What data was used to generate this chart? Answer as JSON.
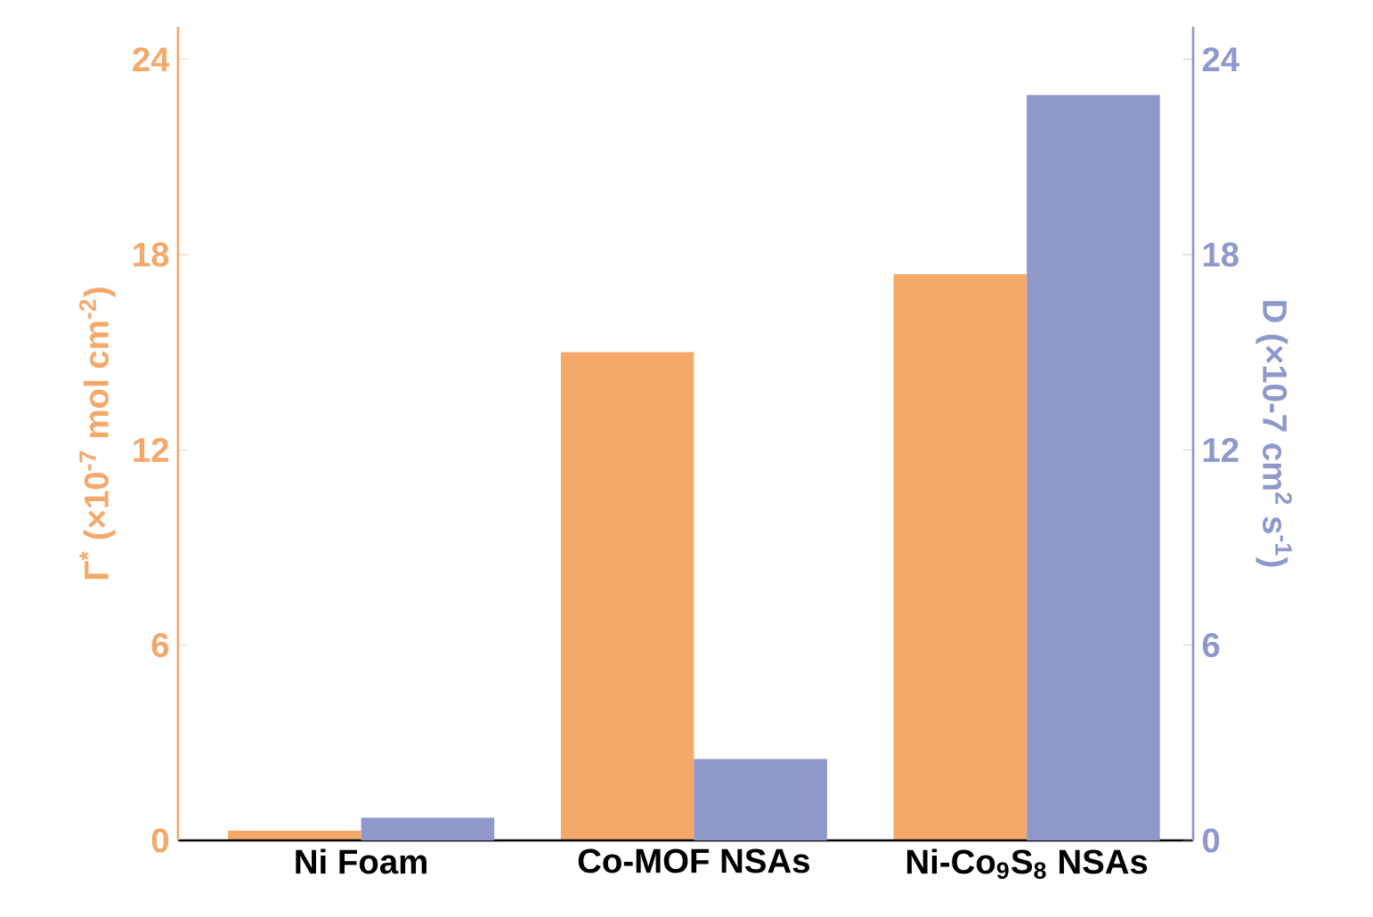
{
  "chart_data": {
    "type": "bar",
    "categories": [
      "Ni Foam",
      "Co-MOF NSAs",
      "Ni-Co$_{9}$S$_{8}$ NSAs"
    ],
    "ylabel": "Γ$^{*}$ (×10$^{-7}$ mol cm$^{-2}$)",
    "y2label": "D (×10-7 cm$^{2}$ s$^{-1}$)",
    "ylim": [
      0,
      25
    ],
    "yticks": [
      0,
      6,
      12,
      18,
      24
    ],
    "y2lim": [
      0,
      25
    ],
    "y2ticks": [
      0,
      6,
      12,
      18,
      24
    ],
    "series": [
      {
        "color": "#f4a96a",
        "values": [
          0.3,
          15.0,
          17.4
        ]
      },
      {
        "color": "#8f98cb",
        "values": [
          0.7,
          2.5,
          22.9
        ],
        "axis": "y2"
      }
    ]
  }
}
